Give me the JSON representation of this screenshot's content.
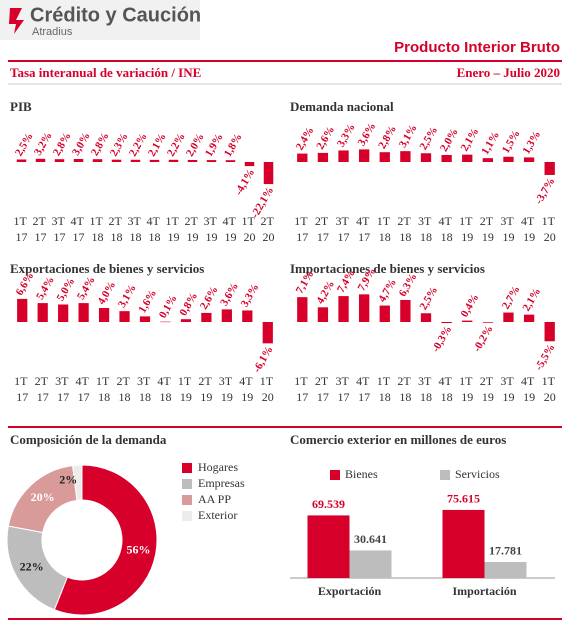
{
  "header": {
    "brand": "Crédito y Caución",
    "sub": "Atradius",
    "title": "Producto Interior Bruto",
    "subtitle": "Tasa interanual de variación / INE",
    "period": "Enero – Julio 2020"
  },
  "chart_data": [
    {
      "type": "bar",
      "title": "PIB",
      "color": "#d6002a",
      "ylim": [
        -35,
        35
      ],
      "categories": [
        "1T 17",
        "2T 17",
        "3T 17",
        "4T 17",
        "1T 18",
        "2T 18",
        "3T 18",
        "4T 18",
        "1T 19",
        "2T 19",
        "3T 19",
        "4T 19",
        "1T 20",
        "2T 20"
      ],
      "values": [
        2.5,
        3.2,
        2.8,
        3.0,
        2.8,
        2.3,
        2.2,
        2.1,
        2.2,
        2.0,
        1.9,
        1.8,
        -4.1,
        -22.1
      ],
      "value_labels": [
        "2,5%",
        "3,2%",
        "2,8%",
        "3,0%",
        "2,8%",
        "2,3%",
        "2,2%",
        "2,1%",
        "2,2%",
        "2,0%",
        "1,9%",
        "1,8%",
        "-4,1%",
        "-22,1%"
      ]
    },
    {
      "type": "bar",
      "title": "Demanda nacional",
      "color": "#d6002a",
      "ylim": [
        -10,
        10
      ],
      "categories": [
        "1T 17",
        "2T 17",
        "3T 17",
        "4T 17",
        "1T 18",
        "2T 18",
        "3T 18",
        "4T 18",
        "1T 19",
        "2T 19",
        "3T 19",
        "4T 19",
        "1T 20"
      ],
      "values": [
        2.4,
        2.6,
        3.3,
        3.6,
        2.8,
        3.1,
        2.5,
        2.0,
        2.1,
        1.1,
        1.5,
        1.3,
        -3.7
      ],
      "value_labels": [
        "2,4%",
        "2,6%",
        "3,3%",
        "3,6%",
        "2,8%",
        "3,1%",
        "2,5%",
        "2,0%",
        "2,1%",
        "1,1%",
        "1,5%",
        "1,3%",
        "-3,7%"
      ]
    },
    {
      "type": "bar",
      "title": "Exportaciones de bienes y servicios",
      "color": "#d6002a",
      "ylim": [
        -10,
        10
      ],
      "categories": [
        "1T 17",
        "2T 17",
        "3T 17",
        "4T 17",
        "1T 18",
        "2T 18",
        "3T 18",
        "4T 18",
        "1T 19",
        "2T 19",
        "3T 19",
        "4T 19",
        "1T 20"
      ],
      "values": [
        6.6,
        5.4,
        5.0,
        5.4,
        4.0,
        3.1,
        1.6,
        0.1,
        0.8,
        2.6,
        3.6,
        3.3,
        -6.1
      ],
      "value_labels": [
        "6,6%",
        "5,4%",
        "5,0%",
        "5,4%",
        "4,0%",
        "3,1%",
        "1,6%",
        "0,1%",
        "0,8%",
        "2,6%",
        "3,6%",
        "3,3%",
        "-6,1%"
      ]
    },
    {
      "type": "bar",
      "title": "Importaciones de bienes y servicios",
      "color": "#d6002a",
      "ylim": [
        -10,
        10
      ],
      "categories": [
        "1T 17",
        "2T 17",
        "3T 17",
        "4T 17",
        "1T 18",
        "2T 18",
        "3T 18",
        "4T 18",
        "1T 19",
        "2T 19",
        "3T 19",
        "4T 19",
        "1T 20"
      ],
      "values": [
        7.1,
        4.2,
        7.4,
        7.9,
        4.7,
        6.3,
        2.5,
        -0.3,
        0.4,
        -0.2,
        2.7,
        2.1,
        -5.5
      ],
      "value_labels": [
        "7,1%",
        "4,2%",
        "7,4%",
        "7,9%",
        "4,7%",
        "6,3%",
        "2,5%",
        "-0,3%",
        "0,4%",
        "-0,2%",
        "2,7%",
        "2,1%",
        "-5,5%"
      ]
    },
    {
      "type": "pie",
      "title": "Composición de la demanda",
      "categories": [
        "Hogares",
        "Empresas",
        "AA PP",
        "Exterior"
      ],
      "values": [
        56,
        22,
        20,
        2
      ],
      "value_labels": [
        "56%",
        "22%",
        "20%",
        "2%"
      ],
      "colors": [
        "#d6002a",
        "#bdbdbd",
        "#d99a9a",
        "#ececec"
      ]
    },
    {
      "type": "grouped_bar",
      "title": "Comercio exterior en millones de euros",
      "ylim": [
        0,
        80000
      ],
      "categories": [
        "Exportación",
        "Importación"
      ],
      "series": [
        {
          "name": "Bienes",
          "color": "#d6002a",
          "values": [
            69539,
            75615
          ],
          "value_labels": [
            "69.539",
            "75.615"
          ]
        },
        {
          "name": "Servicios",
          "color": "#bdbdbd",
          "values": [
            30641,
            17781
          ],
          "value_labels": [
            "30.641",
            "17.781"
          ]
        }
      ]
    }
  ]
}
